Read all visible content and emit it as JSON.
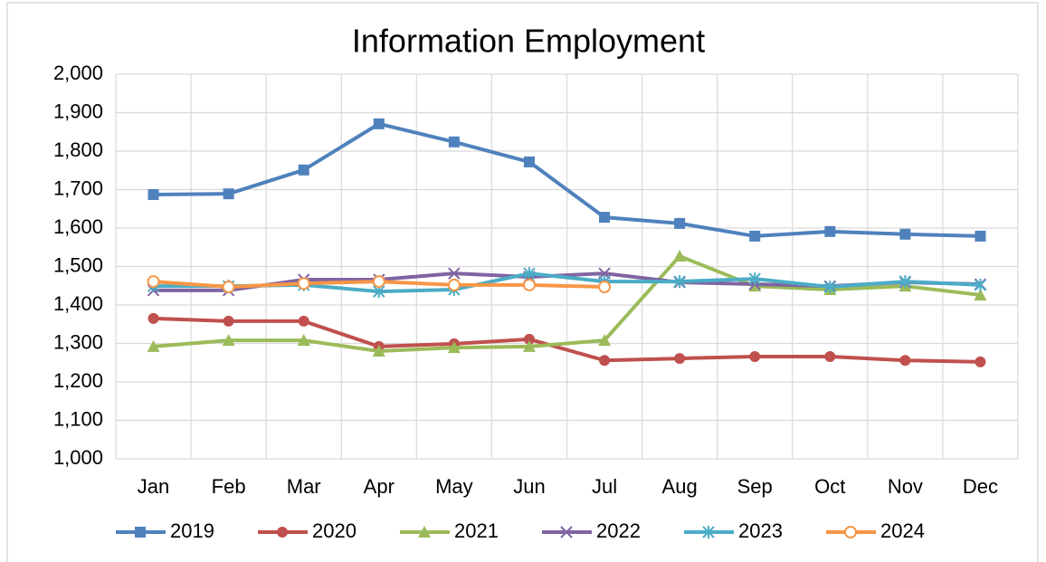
{
  "chart_data": {
    "type": "line",
    "title": "Information Employment",
    "categories": [
      "Jan",
      "Feb",
      "Mar",
      "Apr",
      "May",
      "Jun",
      "Jul",
      "Aug",
      "Sep",
      "Oct",
      "Nov",
      "Dec"
    ],
    "series": [
      {
        "name": "2019",
        "color": "#4f81bd",
        "marker": "square",
        "values": [
          1687,
          1689,
          1751,
          1871,
          1824,
          1772,
          1628,
          1612,
          1579,
          1591,
          1584,
          1579
        ]
      },
      {
        "name": "2020",
        "color": "#c0504d",
        "marker": "circle",
        "values": [
          1365,
          1358,
          1358,
          1292,
          1299,
          1311,
          1256,
          1261,
          1266,
          1266,
          1256,
          1252
        ]
      },
      {
        "name": "2021",
        "color": "#9bbb59",
        "marker": "triangle",
        "values": [
          1292,
          1308,
          1308,
          1280,
          1289,
          1292,
          1308,
          1527,
          1449,
          1440,
          1449,
          1426
        ]
      },
      {
        "name": "2022",
        "color": "#8064a2",
        "marker": "x",
        "values": [
          1438,
          1438,
          1466,
          1466,
          1482,
          1473,
          1482,
          1459,
          1454,
          1449,
          1459,
          1454
        ]
      },
      {
        "name": "2023",
        "color": "#4bacc6",
        "marker": "asterisk",
        "values": [
          1449,
          1449,
          1452,
          1435,
          1440,
          1482,
          1461,
          1461,
          1468,
          1447,
          1461,
          1452
        ]
      },
      {
        "name": "2024",
        "color": "#f79646",
        "marker": "open-circle",
        "values": [
          1461,
          1447,
          1456,
          1461,
          1452,
          1452,
          1447,
          null,
          null,
          null,
          null,
          null
        ]
      }
    ],
    "ylim": [
      1000,
      2000
    ],
    "yticks": [
      {
        "value": 1000,
        "label": "1,000"
      },
      {
        "value": 1100,
        "label": "1,100"
      },
      {
        "value": 1200,
        "label": "1,200"
      },
      {
        "value": 1300,
        "label": "1,300"
      },
      {
        "value": 1400,
        "label": "1,400"
      },
      {
        "value": 1500,
        "label": "1,500"
      },
      {
        "value": 1600,
        "label": "1,600"
      },
      {
        "value": 1700,
        "label": "1,700"
      },
      {
        "value": 1800,
        "label": "1,800"
      },
      {
        "value": 1900,
        "label": "1,900"
      },
      {
        "value": 2000,
        "label": "2,000"
      }
    ],
    "grid": true,
    "legend": "bottom"
  }
}
